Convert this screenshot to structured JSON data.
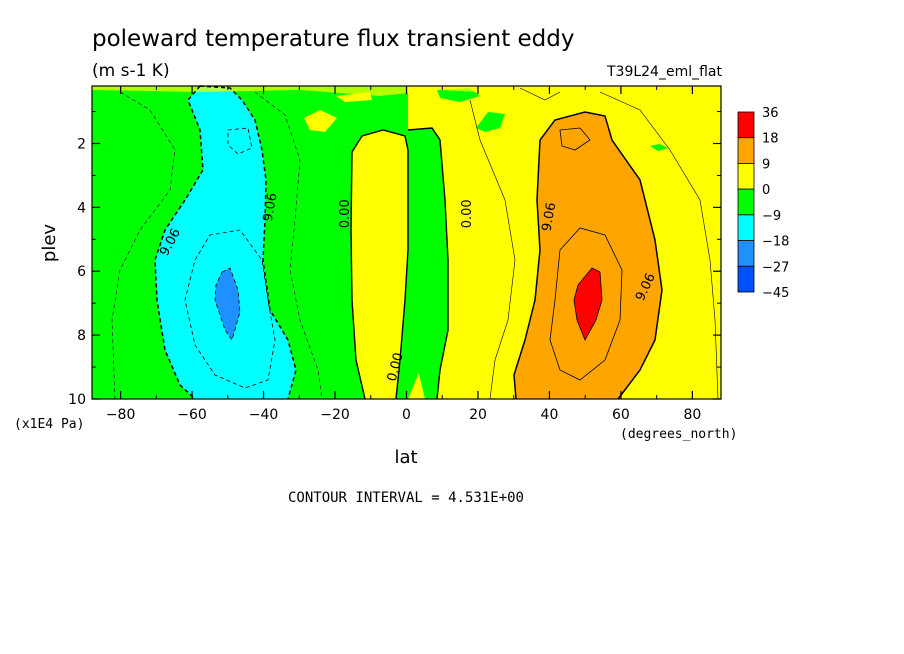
{
  "header": {
    "title": "poleward temperature flux transient eddy",
    "units": "(m s-1 K)",
    "run_name": "T39L24_eml_flat"
  },
  "footer": {
    "contour_interval": "CONTOUR INTERVAL = 4.531E+00"
  },
  "chart_data": {
    "type": "contour",
    "title": "poleward temperature flux transient eddy",
    "xlabel": "lat",
    "ylabel": "plev",
    "x_units": "(degrees_north)",
    "y_units": "(x1E4 Pa)",
    "xlim": [
      -88,
      88
    ],
    "ylim": [
      10,
      0.2
    ],
    "x_ticks": [
      -80,
      -60,
      -40,
      -20,
      0,
      20,
      40,
      60,
      80
    ],
    "x_tick_labels": [
      "-80",
      "-60",
      "-40",
      "-20",
      "0",
      "20",
      "40",
      "60",
      "80"
    ],
    "y_ticks": [
      2,
      4,
      6,
      8,
      10
    ],
    "y_tick_labels": [
      "2",
      "4",
      "6",
      "8",
      "10"
    ],
    "legend": {
      "placement": "right",
      "levels": [
        "36",
        "18",
        "9",
        "0",
        "-9",
        "-18",
        "-27",
        "-45"
      ],
      "colors": [
        "#ff0000",
        "#ffa500",
        "#ffff00",
        "#00ff00",
        "#00ffff",
        "#1e90ff",
        "#0050ff"
      ]
    },
    "contour_labels": [
      {
        "text": "9.06",
        "lat": -66,
        "plev": 5.1,
        "angle": -62
      },
      {
        "text": "9.06",
        "lat": -38,
        "plev": 4.0,
        "angle": -80
      },
      {
        "text": "0.00",
        "lat": -17,
        "plev": 4.2,
        "angle": -90
      },
      {
        "text": "0.00",
        "lat": 17,
        "plev": 4.2,
        "angle": -90
      },
      {
        "text": "0.00",
        "lat": -3,
        "plev": 9.0,
        "angle": -75
      },
      {
        "text": "9.06",
        "lat": 40,
        "plev": 4.3,
        "angle": -80
      },
      {
        "text": "9.06",
        "lat": 67,
        "plev": 6.5,
        "angle": -65
      }
    ],
    "contour_interval": 4.531
  }
}
